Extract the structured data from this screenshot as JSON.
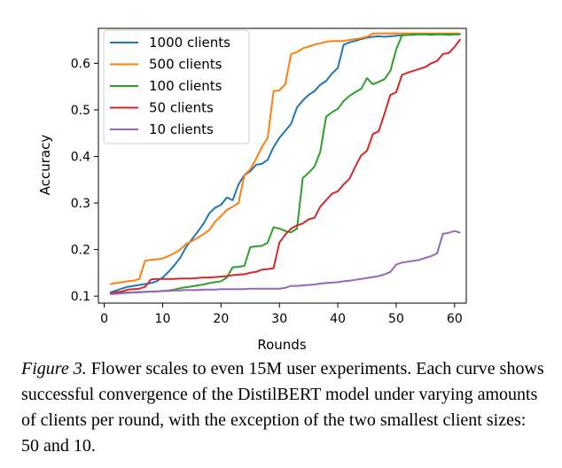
{
  "chart_data": {
    "type": "line",
    "xlabel": "Rounds",
    "ylabel": "Accuracy",
    "xlim": [
      -1,
      62
    ],
    "ylim": [
      0.085,
      0.675
    ],
    "xticks": [
      0,
      10,
      20,
      30,
      40,
      50,
      60
    ],
    "yticks": [
      0.1,
      0.2,
      0.3,
      0.4,
      0.5,
      0.6
    ],
    "ytick_labels": [
      "0.1",
      "0.2",
      "0.3",
      "0.4",
      "0.5",
      "0.6"
    ],
    "grid": false,
    "legend_position": "top-left",
    "series": [
      {
        "name": "1000 clients",
        "color": "#1f77b4",
        "x": [
          1,
          2,
          3,
          4,
          5,
          6,
          7,
          8,
          9,
          10,
          11,
          12,
          13,
          14,
          15,
          16,
          17,
          18,
          19,
          20,
          21,
          22,
          23,
          24,
          25,
          26,
          27,
          28,
          29,
          30,
          31,
          32,
          33,
          34,
          35,
          36,
          37,
          38,
          39,
          40,
          41,
          42,
          43,
          44,
          45,
          46,
          47,
          48,
          49,
          50,
          51,
          52,
          53,
          54,
          55,
          56,
          57,
          58,
          59,
          60,
          61
        ],
        "y": [
          0.108,
          0.112,
          0.116,
          0.12,
          0.122,
          0.124,
          0.126,
          0.128,
          0.132,
          0.14,
          0.152,
          0.166,
          0.182,
          0.205,
          0.222,
          0.238,
          0.256,
          0.278,
          0.29,
          0.296,
          0.312,
          0.306,
          0.34,
          0.36,
          0.368,
          0.382,
          0.384,
          0.393,
          0.42,
          0.44,
          0.455,
          0.47,
          0.505,
          0.52,
          0.532,
          0.54,
          0.554,
          0.562,
          0.578,
          0.59,
          0.64,
          0.645,
          0.648,
          0.652,
          0.655,
          0.657,
          0.658,
          0.657,
          0.658,
          0.659,
          0.66,
          0.661,
          0.661,
          0.662,
          0.662,
          0.661,
          0.662,
          0.662,
          0.661,
          0.662,
          0.662
        ]
      },
      {
        "name": "500 clients",
        "color": "#ff7f0e",
        "x": [
          1,
          2,
          3,
          4,
          5,
          6,
          7,
          8,
          9,
          10,
          11,
          12,
          13,
          14,
          15,
          16,
          17,
          18,
          19,
          20,
          21,
          22,
          23,
          24,
          25,
          26,
          27,
          28,
          29,
          30,
          31,
          32,
          33,
          34,
          35,
          36,
          37,
          38,
          39,
          40,
          41,
          42,
          43,
          44,
          45,
          46,
          47,
          48,
          49,
          50,
          51,
          52,
          53,
          54,
          55,
          56,
          57,
          58,
          59,
          60,
          61
        ],
        "y": [
          0.126,
          0.128,
          0.13,
          0.132,
          0.133,
          0.137,
          0.176,
          0.178,
          0.179,
          0.181,
          0.186,
          0.192,
          0.2,
          0.212,
          0.218,
          0.225,
          0.233,
          0.242,
          0.26,
          0.272,
          0.285,
          0.292,
          0.3,
          0.36,
          0.372,
          0.395,
          0.42,
          0.44,
          0.54,
          0.542,
          0.555,
          0.62,
          0.624,
          0.632,
          0.636,
          0.64,
          0.643,
          0.646,
          0.648,
          0.648,
          0.648,
          0.65,
          0.652,
          0.654,
          0.657,
          0.664,
          0.664,
          0.664,
          0.664,
          0.664,
          0.664,
          0.664,
          0.664,
          0.664,
          0.664,
          0.664,
          0.664,
          0.664,
          0.664,
          0.664,
          0.664
        ]
      },
      {
        "name": "100 clients",
        "color": "#2ca02c",
        "x": [
          1,
          2,
          3,
          4,
          5,
          6,
          7,
          8,
          9,
          10,
          11,
          12,
          13,
          14,
          15,
          16,
          17,
          18,
          19,
          20,
          21,
          22,
          23,
          24,
          25,
          26,
          27,
          28,
          29,
          30,
          31,
          32,
          33,
          34,
          35,
          36,
          37,
          38,
          39,
          40,
          41,
          42,
          43,
          44,
          45,
          46,
          47,
          48,
          49,
          50,
          51,
          52,
          53,
          54,
          55,
          56,
          57,
          58,
          59,
          60,
          61
        ],
        "y": [
          0.105,
          0.106,
          0.107,
          0.108,
          0.108,
          0.109,
          0.109,
          0.11,
          0.11,
          0.111,
          0.112,
          0.114,
          0.117,
          0.119,
          0.121,
          0.123,
          0.125,
          0.128,
          0.13,
          0.132,
          0.14,
          0.162,
          0.163,
          0.165,
          0.205,
          0.207,
          0.208,
          0.215,
          0.248,
          0.245,
          0.24,
          0.237,
          0.245,
          0.354,
          0.365,
          0.378,
          0.41,
          0.485,
          0.495,
          0.502,
          0.519,
          0.53,
          0.538,
          0.545,
          0.568,
          0.555,
          0.56,
          0.566,
          0.584,
          0.63,
          0.66,
          0.661,
          0.662,
          0.662,
          0.662,
          0.662,
          0.662,
          0.662,
          0.662,
          0.662,
          0.662
        ]
      },
      {
        "name": "50 clients",
        "color": "#d62728",
        "x": [
          1,
          2,
          3,
          4,
          5,
          6,
          7,
          8,
          9,
          10,
          11,
          12,
          13,
          14,
          15,
          16,
          17,
          18,
          19,
          20,
          21,
          22,
          23,
          24,
          25,
          26,
          27,
          28,
          29,
          30,
          31,
          32,
          33,
          34,
          35,
          36,
          37,
          38,
          39,
          40,
          41,
          42,
          43,
          44,
          45,
          46,
          47,
          48,
          49,
          50,
          51,
          52,
          53,
          54,
          55,
          56,
          57,
          58,
          59,
          60,
          61
        ],
        "y": [
          0.106,
          0.108,
          0.11,
          0.114,
          0.115,
          0.116,
          0.12,
          0.136,
          0.137,
          0.137,
          0.137,
          0.137,
          0.138,
          0.138,
          0.138,
          0.139,
          0.14,
          0.14,
          0.141,
          0.142,
          0.143,
          0.145,
          0.146,
          0.147,
          0.15,
          0.152,
          0.157,
          0.158,
          0.16,
          0.215,
          0.232,
          0.245,
          0.252,
          0.256,
          0.265,
          0.268,
          0.292,
          0.306,
          0.32,
          0.325,
          0.34,
          0.352,
          0.378,
          0.402,
          0.412,
          0.448,
          0.454,
          0.492,
          0.532,
          0.538,
          0.575,
          0.58,
          0.584,
          0.588,
          0.592,
          0.6,
          0.605,
          0.62,
          0.622,
          0.635,
          0.652
        ]
      },
      {
        "name": "10 clients",
        "color": "#9467bd",
        "x": [
          1,
          2,
          3,
          4,
          5,
          6,
          7,
          8,
          9,
          10,
          11,
          12,
          13,
          14,
          15,
          16,
          17,
          18,
          19,
          20,
          21,
          22,
          23,
          24,
          25,
          26,
          27,
          28,
          29,
          30,
          31,
          32,
          33,
          34,
          35,
          36,
          37,
          38,
          39,
          40,
          41,
          42,
          43,
          44,
          45,
          46,
          47,
          48,
          49,
          50,
          51,
          52,
          53,
          54,
          55,
          56,
          57,
          58,
          59,
          60,
          61
        ],
        "y": [
          0.104,
          0.105,
          0.106,
          0.107,
          0.108,
          0.108,
          0.109,
          0.11,
          0.11,
          0.111,
          0.111,
          0.112,
          0.112,
          0.113,
          0.113,
          0.113,
          0.114,
          0.114,
          0.114,
          0.115,
          0.115,
          0.115,
          0.115,
          0.115,
          0.116,
          0.116,
          0.116,
          0.116,
          0.116,
          0.116,
          0.118,
          0.122,
          0.122,
          0.123,
          0.124,
          0.125,
          0.127,
          0.128,
          0.129,
          0.13,
          0.132,
          0.133,
          0.135,
          0.137,
          0.139,
          0.141,
          0.143,
          0.147,
          0.152,
          0.168,
          0.172,
          0.174,
          0.176,
          0.178,
          0.182,
          0.186,
          0.192,
          0.234,
          0.236,
          0.24,
          0.236
        ]
      }
    ]
  },
  "caption": {
    "label": "Figure 3.",
    "text": " Flower scales to even 15M user experiments. Each curve shows successful convergence of the DistilBERT model under varying amounts of clients per round, with the exception of the two smallest client sizes: 50 and 10."
  }
}
